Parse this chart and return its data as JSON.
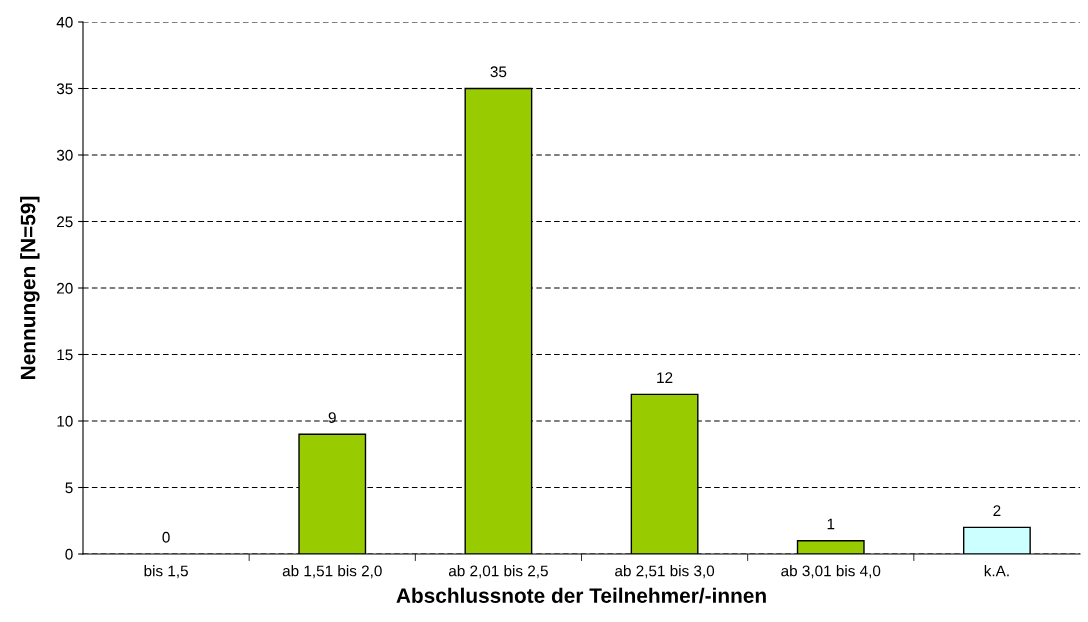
{
  "chart_data": {
    "type": "bar",
    "xlabel": "Abschlussnote der Teilnehmer/-innen",
    "ylabel": "Nennungen [N=59]",
    "categories": [
      "bis 1,5",
      "ab 1,51 bis 2,0",
      "ab 2,01 bis 2,5",
      "ab 2,51 bis 3,0",
      "ab 3,01 bis 4,0",
      "k.A."
    ],
    "values": [
      0,
      9,
      35,
      12,
      1,
      2
    ],
    "colors": [
      "#99cc00",
      "#99cc00",
      "#99cc00",
      "#99cc00",
      "#99cc00",
      "#ccffff"
    ],
    "ylim": [
      0,
      40
    ],
    "yticks": [
      0,
      5,
      10,
      15,
      20,
      25,
      30,
      35,
      40
    ],
    "grid": "y",
    "data_labels": true
  }
}
